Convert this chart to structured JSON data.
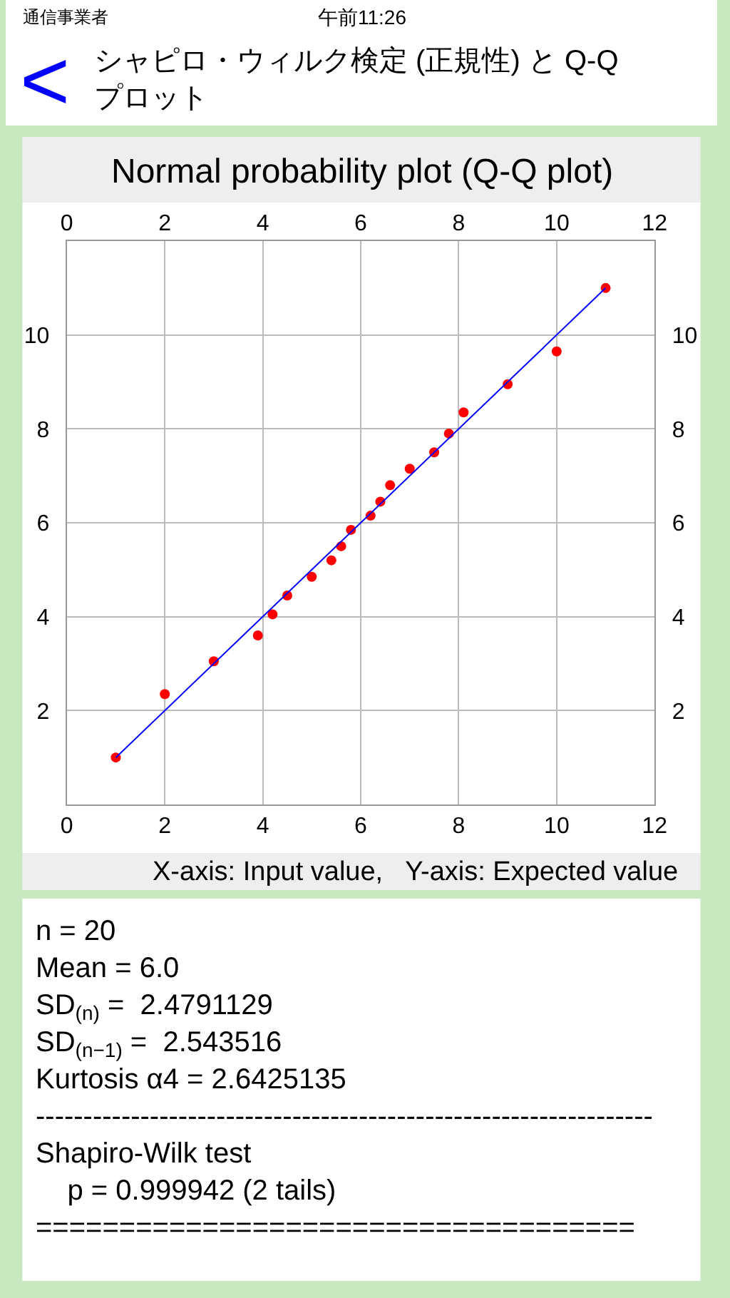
{
  "chart_data": {
    "type": "scatter",
    "title": "Normal probability plot (Q-Q plot)",
    "xlabel": "X-axis: Input value,   Y-axis: Expected value",
    "x": [
      1,
      2,
      3,
      3.9,
      4.2,
      4.5,
      5,
      5.4,
      5.6,
      5.8,
      6.2,
      6.4,
      6.6,
      7,
      7.5,
      7.8,
      8.1,
      9,
      10,
      11
    ],
    "series": [
      {
        "color": "#ff0000",
        "marker": "circle",
        "values": [
          1.0,
          2.35,
          3.05,
          3.6,
          4.05,
          4.45,
          4.85,
          5.2,
          5.5,
          5.85,
          6.15,
          6.45,
          6.8,
          7.15,
          7.5,
          7.9,
          8.35,
          8.95,
          9.65,
          11.0
        ]
      },
      {
        "type": "line",
        "color": "#0000ff",
        "marker": "none",
        "line_style": "solid",
        "x": [
          1,
          11
        ],
        "values": [
          1,
          11
        ]
      }
    ],
    "xlim": [
      0,
      12
    ],
    "xticks": [
      0,
      2,
      4,
      6,
      8,
      10,
      12
    ],
    "x2lim": [
      0,
      12
    ],
    "x2ticks": [
      0,
      2,
      4,
      6,
      8,
      10,
      12
    ],
    "ylim": [
      0,
      12
    ],
    "yticks": [
      2,
      4,
      6,
      8,
      10
    ],
    "y2lim": [
      0,
      12
    ],
    "y2ticks": [
      2,
      4,
      6,
      8,
      10
    ],
    "grid": true,
    "annotations": [
      "通信事業者",
      "午前11:26",
      "<",
      "シャピロ・ウィルク検定 (正規性) と Q-Q\nプロット",
      "n = 20\nMean = 6.0\nSD$_{(n)}$ =  2.4791129\nSD$_{(n−1)}$ =  2.543516\nKurtosis α4 = 2.6425135\n-----------------------------------------------------------------\nShapiro-Wilk test\n    p = 0.999942 (2 tails)\n===================================="
    ]
  }
}
